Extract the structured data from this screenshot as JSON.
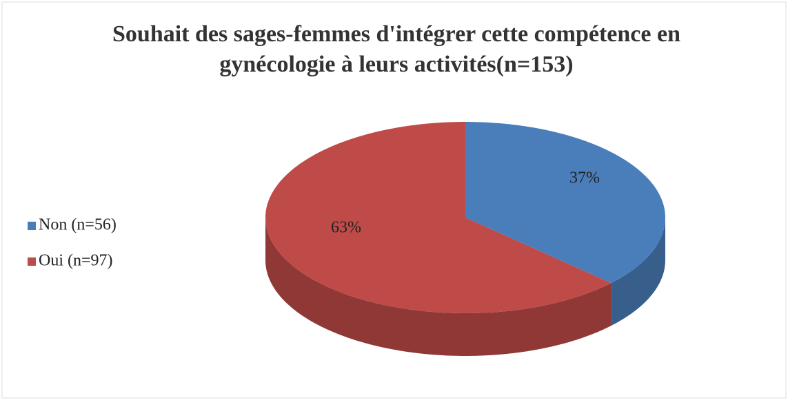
{
  "chart_data": {
    "type": "pie",
    "pie3d": true,
    "title": "Souhait des sages-femmes d'intégrer cette compétence en gynécologie à leurs activités(n=153)",
    "categories": [
      "Non (n=56)",
      "Oui (n=97)"
    ],
    "values": [
      37,
      63
    ],
    "value_labels": [
      "37%",
      "63%"
    ],
    "colors": [
      "#4a7ebb",
      "#be4b48"
    ],
    "legend": "left"
  }
}
